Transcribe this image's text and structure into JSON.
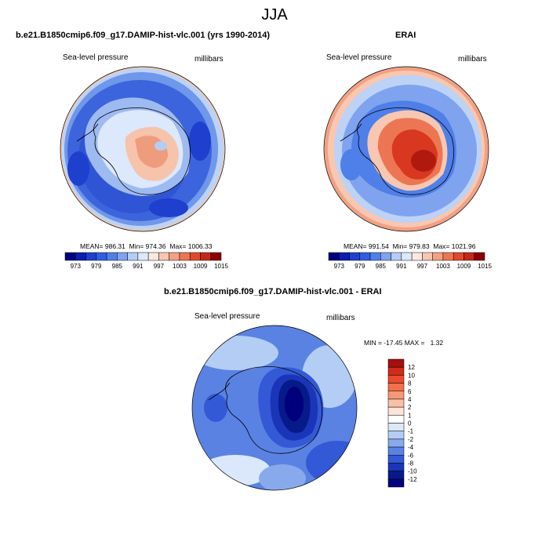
{
  "season": "JJA",
  "chart_data": [
    {
      "type": "heatmap",
      "title": "b.e21.B1850cmip6.f09_g17.DAMIP-hist-vlc.001 (yrs 1990-2014)",
      "left_label": "Sea-level pressure",
      "right_label": "millibars",
      "stats": {
        "mean": "986.31",
        "min": "974.36",
        "max": "1006.33"
      },
      "colorbar_ticks": [
        "973",
        "979",
        "985",
        "991",
        "997",
        "1003",
        "1009",
        "1015"
      ],
      "colorbar_colors": [
        "#00007f",
        "#0a1fb0",
        "#1f3fcf",
        "#2f5ee0",
        "#4f7fe8",
        "#7fa3ee",
        "#b4cdf6",
        "#dde9fb",
        "#fbe9e0",
        "#f8c7b1",
        "#f2a183",
        "#ec7653",
        "#e04a2c",
        "#c22a16",
        "#8b0000"
      ]
    },
    {
      "type": "heatmap",
      "title": "ERAI",
      "left_label": "Sea-level pressure",
      "right_label": "millibars",
      "stats": {
        "mean": "991.54",
        "min": "979.83",
        "max": "1021.96"
      },
      "colorbar_ticks": [
        "973",
        "979",
        "985",
        "991",
        "997",
        "1003",
        "1009",
        "1015"
      ],
      "colorbar_colors": [
        "#00007f",
        "#0a1fb0",
        "#1f3fcf",
        "#2f5ee0",
        "#4f7fe8",
        "#7fa3ee",
        "#b4cdf6",
        "#dde9fb",
        "#fbe9e0",
        "#f8c7b1",
        "#f2a183",
        "#ec7653",
        "#e04a2c",
        "#c22a16",
        "#8b0000"
      ]
    },
    {
      "type": "heatmap",
      "title": "b.e21.B1850cmip6.f09_g17.DAMIP-hist-vlc.001 - ERAI",
      "left_label": "Sea-level pressure",
      "right_label": "millibars",
      "stats": {
        "min": "-17.45",
        "max": "1.32"
      },
      "colorbar_ticks": [
        "12",
        "10",
        "8",
        "6",
        "4",
        "2",
        "1",
        "0",
        "-1",
        "-2",
        "-4",
        "-6",
        "-8",
        "-10",
        "-12"
      ],
      "colorbar_colors": [
        "#a50f0f",
        "#d22a1b",
        "#ec4a2c",
        "#f3704d",
        "#f59878",
        "#f9c0a8",
        "#fde4d6",
        "#ffffff",
        "#dbe8fb",
        "#b3cdf5",
        "#88aaed",
        "#5a82e3",
        "#3359d6",
        "#1a35b8",
        "#061a8a",
        "#00007f"
      ]
    }
  ]
}
